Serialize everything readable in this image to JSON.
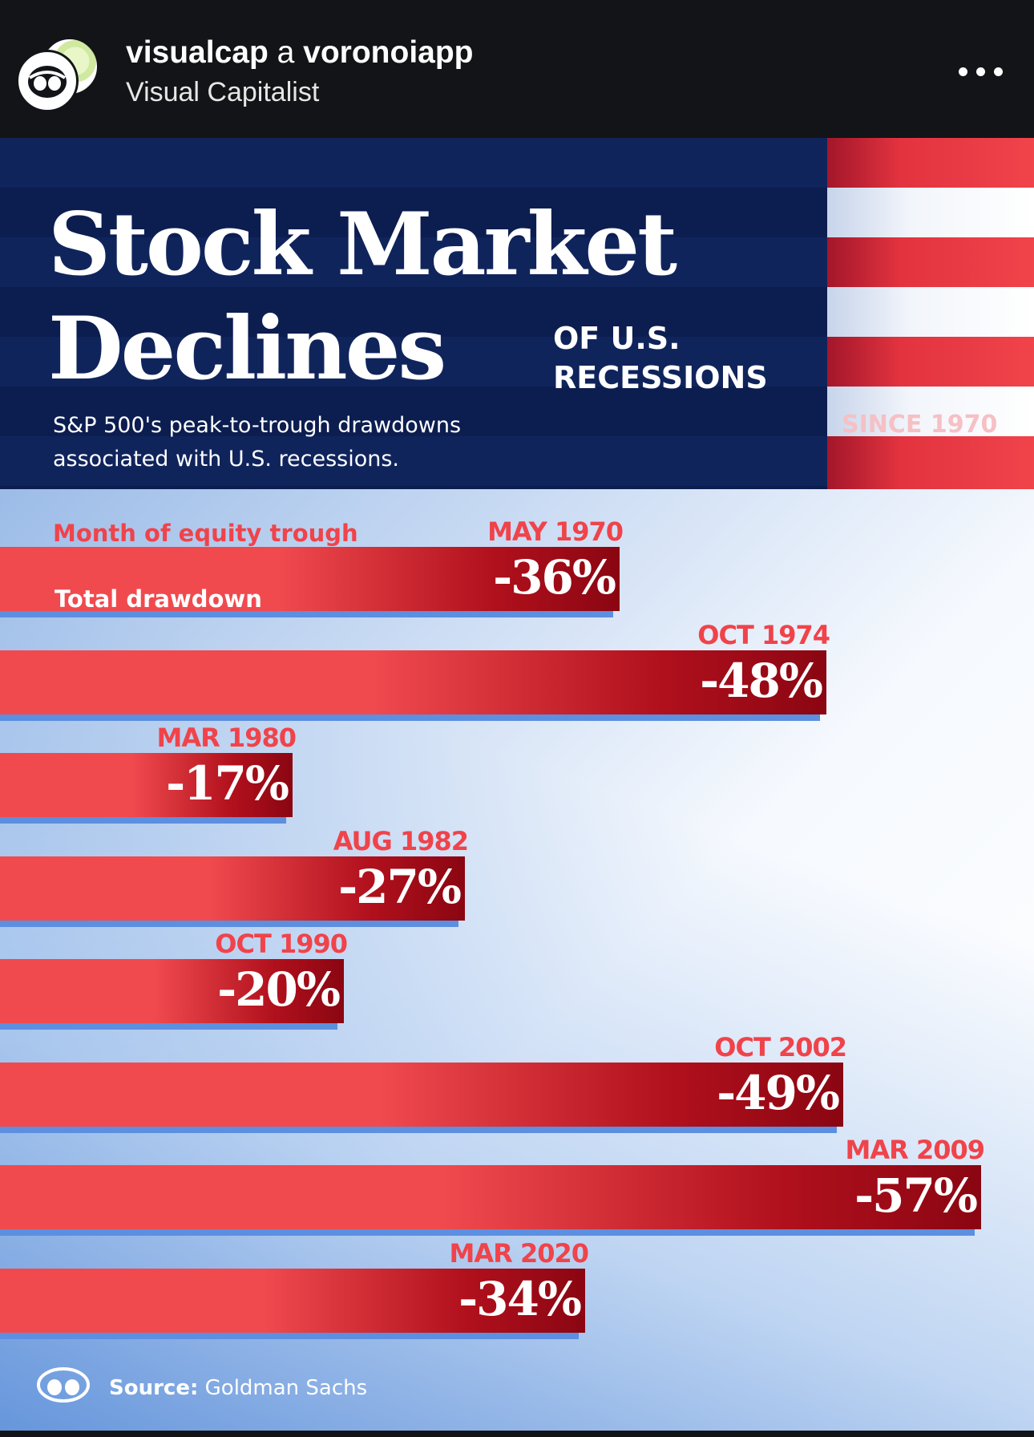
{
  "post_header": {
    "account_primary": "visualcap",
    "account_connector": "a",
    "account_secondary": "voronoiapp",
    "subtitle": "Visual Capitalist",
    "avatar_icon": "visual-capitalist-logo-icon",
    "more_icon": "more-options-icon"
  },
  "infographic": {
    "title_line1": "Stock Market",
    "title_line2": "Declines",
    "title_suffix_line1": "OF U.S.",
    "title_suffix_line2": "RECESSIONS",
    "subtitle_line1": "S&P 500's peak-to-trough drawdowns",
    "subtitle_line2": "associated with U.S. recessions.",
    "since": "SINCE 1970",
    "legend_month": "Month of equity trough",
    "legend_drawdown": "Total drawdown",
    "source_label": "Source:",
    "source_value": "Goldman Sachs",
    "colors": {
      "navy": "#0e2157",
      "red": "#f0434a",
      "dark_red": "#8a0612",
      "blue_shadow": "#5c8fe0"
    }
  },
  "chart_data": {
    "type": "bar",
    "orientation": "horizontal",
    "title": "Stock Market Declines",
    "subtitle": "S&P 500's peak-to-trough drawdowns associated with U.S. recessions.",
    "categories": [
      "MAY 1970",
      "OCT 1974",
      "MAR 1980",
      "AUG 1982",
      "OCT 1990",
      "OCT 2002",
      "MAR 2009",
      "MAR 2020"
    ],
    "values": [
      -36,
      -48,
      -17,
      -27,
      -20,
      -49,
      -57,
      -34
    ],
    "value_labels": [
      "-36%",
      "-48%",
      "-17%",
      "-27%",
      "-20%",
      "-49%",
      "-57%",
      "-34%"
    ],
    "xlabel": "",
    "ylabel": "",
    "xlim": [
      0,
      60
    ],
    "grid": false,
    "legend": "top-left"
  }
}
